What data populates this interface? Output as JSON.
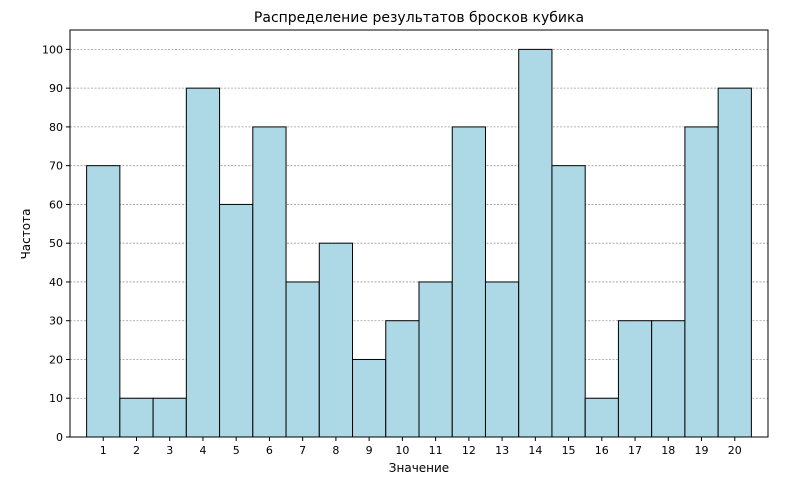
{
  "chart_data": {
    "type": "bar",
    "title": "Распределение результатов бросков кубика",
    "xlabel": "Значение",
    "ylabel": "Частота",
    "categories": [
      "1",
      "2",
      "3",
      "4",
      "5",
      "6",
      "7",
      "8",
      "9",
      "10",
      "11",
      "12",
      "13",
      "14",
      "15",
      "16",
      "17",
      "18",
      "19",
      "20"
    ],
    "values": [
      70,
      10,
      10,
      90,
      60,
      80,
      40,
      50,
      20,
      30,
      40,
      80,
      40,
      100,
      70,
      10,
      30,
      30,
      80,
      90
    ],
    "ylim": [
      0,
      105
    ],
    "yticks": [
      0,
      10,
      20,
      30,
      40,
      50,
      60,
      70,
      80,
      90,
      100
    ],
    "grid": "y",
    "bar_color": "#add8e6",
    "edge_color": "#000000"
  }
}
